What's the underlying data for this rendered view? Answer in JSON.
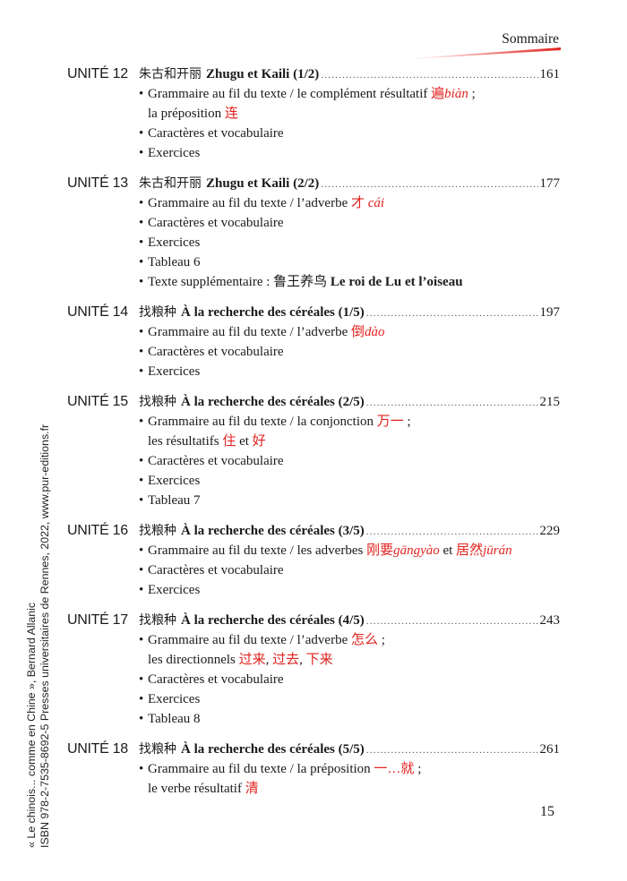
{
  "header": {
    "running_title": "Sommaire",
    "accent_color": "#e2221e"
  },
  "units": [
    {
      "label": "UNITÉ 12",
      "cn": "朱古和开丽",
      "title": "Zhugu et Kaili (1/2)",
      "page": "161",
      "items": [
        [
          [
            {
              "t": "Grammaire au fil du texte / le complément résultatif "
            },
            {
              "t": "遍",
              "red": true
            },
            {
              "t": "biàn",
              "red": true,
              "it": true
            },
            {
              "t": " ;"
            }
          ],
          [
            {
              "t": "la préposition "
            },
            {
              "t": "连",
              "red": true
            }
          ]
        ],
        [
          [
            {
              "t": "Caractères et vocabulaire"
            }
          ]
        ],
        [
          [
            {
              "t": "Exercices"
            }
          ]
        ]
      ]
    },
    {
      "label": "UNITÉ 13",
      "cn": "朱古和开丽",
      "title": "Zhugu et Kaili (2/2)",
      "page": "177",
      "items": [
        [
          [
            {
              "t": "Grammaire au fil du texte / l’adverbe "
            },
            {
              "t": "才",
              "red": true
            },
            {
              "t": " cái",
              "red": true,
              "it": true
            }
          ]
        ],
        [
          [
            {
              "t": "Caractères et vocabulaire"
            }
          ]
        ],
        [
          [
            {
              "t": "Exercices"
            }
          ]
        ],
        [
          [
            {
              "t": "Tableau 6"
            }
          ]
        ],
        [
          [
            {
              "t": "Texte supplémentaire :  "
            },
            {
              "t": "鲁王养鸟 "
            },
            {
              "t": "Le roi de Lu et l’oiseau",
              "b": true
            }
          ]
        ]
      ]
    },
    {
      "label": "UNITÉ 14",
      "cn": "找粮种",
      "title": "À la recherche des céréales (1/5)",
      "page": "197",
      "items": [
        [
          [
            {
              "t": "Grammaire au fil du texte / l’adverbe "
            },
            {
              "t": "倒",
              "red": true
            },
            {
              "t": "dào",
              "red": true,
              "it": true
            }
          ]
        ],
        [
          [
            {
              "t": "Caractères et vocabulaire"
            }
          ]
        ],
        [
          [
            {
              "t": "Exercices"
            }
          ]
        ]
      ]
    },
    {
      "label": "UNITÉ 15",
      "cn": "找粮种",
      "title": "À la recherche des céréales (2/5)",
      "page": "215",
      "items": [
        [
          [
            {
              "t": "Grammaire au fil du texte / la conjonction "
            },
            {
              "t": "万一",
              "red": true
            },
            {
              "t": " ;"
            }
          ],
          [
            {
              "t": "les résultatifs "
            },
            {
              "t": "住",
              "red": true
            },
            {
              "t": " et "
            },
            {
              "t": "好",
              "red": true
            }
          ]
        ],
        [
          [
            {
              "t": "Caractères et vocabulaire"
            }
          ]
        ],
        [
          [
            {
              "t": "Exercices"
            }
          ]
        ],
        [
          [
            {
              "t": "Tableau 7"
            }
          ]
        ]
      ]
    },
    {
      "label": "UNITÉ 16",
      "cn": "找粮种",
      "title": "À la recherche des céréales (3/5)",
      "page": "229",
      "items": [
        [
          [
            {
              "t": "Grammaire au fil du texte / les adverbes "
            },
            {
              "t": "刚要",
              "red": true
            },
            {
              "t": "gāngyào",
              "red": true,
              "it": true
            },
            {
              "t": " et "
            },
            {
              "t": "居然",
              "red": true
            },
            {
              "t": "jūrán",
              "red": true,
              "it": true
            }
          ]
        ],
        [
          [
            {
              "t": "Caractères et vocabulaire"
            }
          ]
        ],
        [
          [
            {
              "t": "Exercices"
            }
          ]
        ]
      ]
    },
    {
      "label": "UNITÉ 17",
      "cn": "找粮种",
      "title": "À la recherche des céréales (4/5)",
      "page": "243",
      "items": [
        [
          [
            {
              "t": "Grammaire au fil du texte / l’adverbe "
            },
            {
              "t": "怎么",
              "red": true
            },
            {
              "t": " ;"
            }
          ],
          [
            {
              "t": "les directionnels "
            },
            {
              "t": "过来",
              "red": true
            },
            {
              "t": ", "
            },
            {
              "t": "过去",
              "red": true
            },
            {
              "t": ", "
            },
            {
              "t": "下来",
              "red": true
            }
          ]
        ],
        [
          [
            {
              "t": "Caractères et vocabulaire"
            }
          ]
        ],
        [
          [
            {
              "t": "Exercices"
            }
          ]
        ],
        [
          [
            {
              "t": "Tableau 8"
            }
          ]
        ]
      ]
    },
    {
      "label": "UNITÉ 18",
      "cn": "找粮种",
      "title": "À la recherche des céréales (5/5)",
      "page": "261",
      "items": [
        [
          [
            {
              "t": "Grammaire au fil du texte / la préposition "
            },
            {
              "t": "一…就",
              "red": true
            },
            {
              "t": " ;"
            }
          ],
          [
            {
              "t": "le verbe résultatif "
            },
            {
              "t": "清",
              "red": true
            }
          ]
        ]
      ]
    }
  ],
  "folio": "15",
  "side_note": {
    "line1": "« Le chinois... comme en Chine », Bernard Allanic",
    "line2": "ISBN 978-2-7535-8692-5 Presses universitaires de Rennes, 2022, www.pur-editions.fr"
  }
}
